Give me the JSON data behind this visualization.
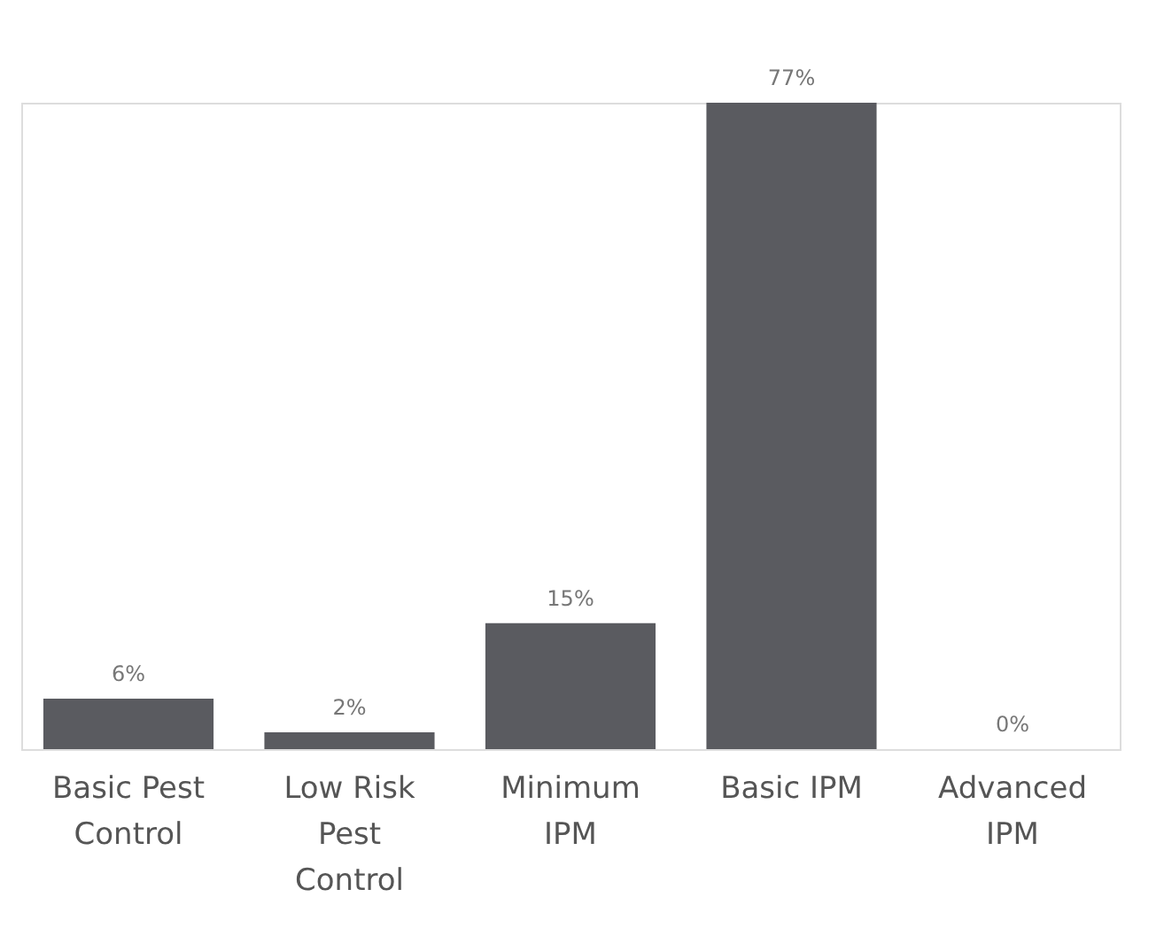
{
  "chart_data": {
    "type": "bar",
    "categories": [
      "Basic Pest Control",
      "Low Risk Pest Control",
      "Minimum IPM",
      "Basic IPM",
      "Advanced IPM"
    ],
    "values": [
      6,
      2,
      15,
      77,
      0
    ],
    "value_labels": [
      "6%",
      "2%",
      "15%",
      "77%",
      "0%"
    ],
    "color": "#5a5b60"
  }
}
